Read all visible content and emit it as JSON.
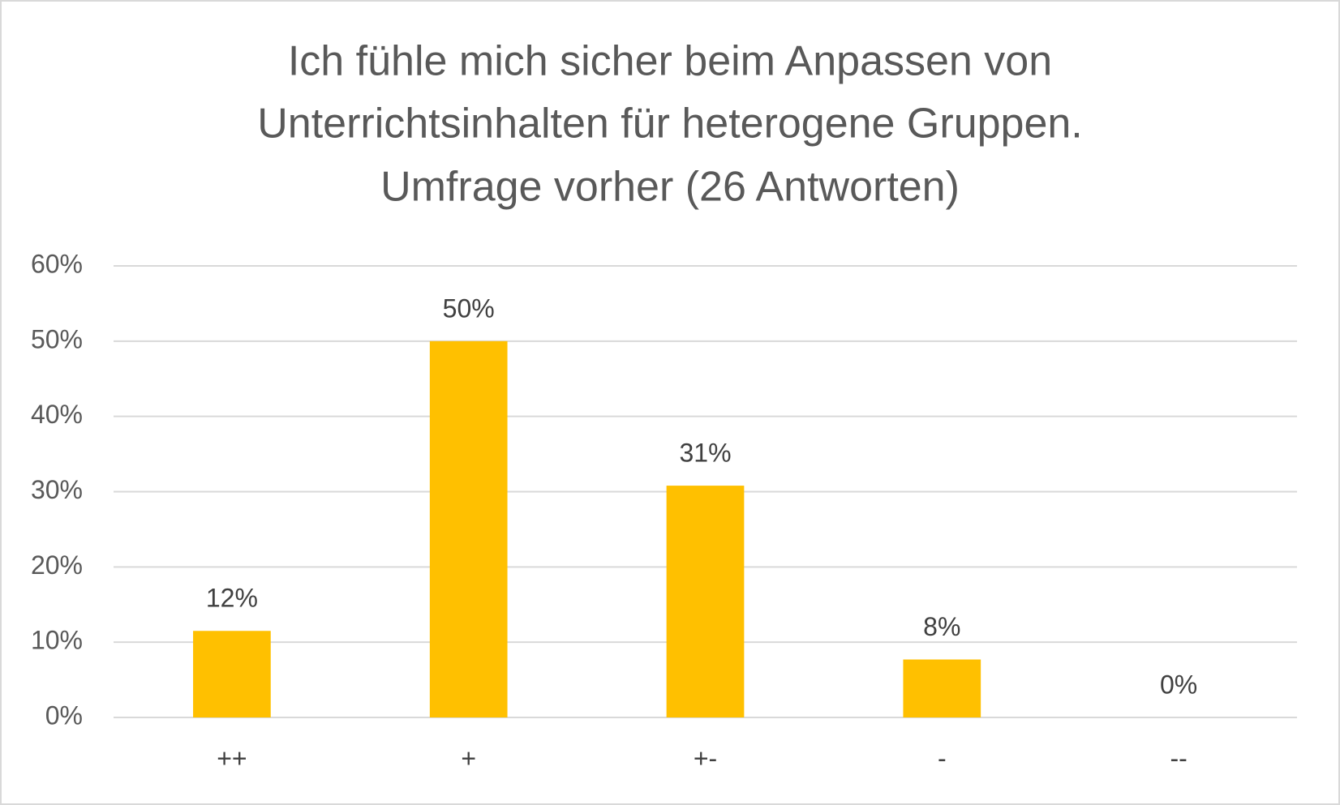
{
  "chart_data": {
    "type": "bar",
    "title": [
      "Ich fühle mich sicher beim Anpassen von",
      "Unterrichtsinhalten für heterogene Gruppen.",
      "Umfrage vorher (26 Antworten)"
    ],
    "categories": [
      "++",
      "+",
      "+-",
      "-",
      "--"
    ],
    "values": [
      11.5,
      50,
      30.8,
      7.7,
      0
    ],
    "value_labels": [
      "12%",
      "50%",
      "31%",
      "8%",
      "0%"
    ],
    "color": "#ffc000",
    "ylim": [
      0,
      60
    ],
    "yticks": [
      {
        "value": 0,
        "label": "0%"
      },
      {
        "value": 10,
        "label": "10%"
      },
      {
        "value": 20,
        "label": "20%"
      },
      {
        "value": 30,
        "label": "30%"
      },
      {
        "value": 40,
        "label": "40%"
      },
      {
        "value": 50,
        "label": "50%"
      },
      {
        "value": 60,
        "label": "60%"
      }
    ],
    "grid": true
  }
}
